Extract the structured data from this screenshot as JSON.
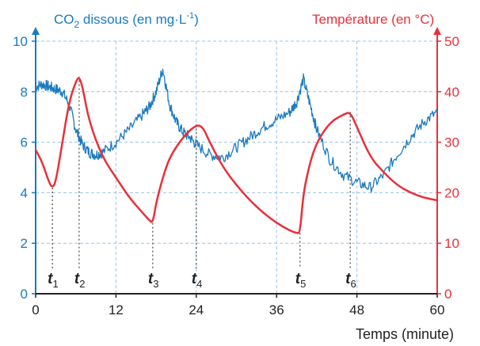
{
  "chart_data": {
    "type": "line",
    "x_label": "Temps (minute)",
    "x_range": [
      0,
      60
    ],
    "x_ticks": [
      0,
      12,
      24,
      36,
      48,
      60
    ],
    "y_left": {
      "label_main": "CO",
      "label_sub": "2",
      "label_rest": " dissous (en mg·L",
      "label_sup": "-1",
      "label_end": ")",
      "range": [
        0,
        10
      ],
      "ticks": [
        0,
        2,
        4,
        6,
        8,
        10
      ],
      "color": "#1a7abf"
    },
    "y_right": {
      "label": "Température (en °C)",
      "range": [
        0,
        50
      ],
      "ticks": [
        0,
        10,
        20,
        30,
        40,
        50
      ],
      "color": "#e8303a"
    },
    "grid": true,
    "series": [
      {
        "axis": "left",
        "color": "#1a7abf",
        "x": [
          0,
          1,
          2,
          3,
          4,
          5,
          6,
          7,
          8,
          9,
          10,
          12,
          14,
          16,
          17,
          18,
          19,
          20,
          21,
          22,
          23,
          24,
          26,
          28,
          30,
          32,
          34,
          36,
          38,
          39,
          40,
          41,
          42,
          44,
          46,
          48,
          50,
          52,
          54,
          56,
          58,
          60
        ],
        "y": [
          8.2,
          8.3,
          8.2,
          8.1,
          8.0,
          7.5,
          6.5,
          5.9,
          5.6,
          5.5,
          5.6,
          6.0,
          6.5,
          7.1,
          7.4,
          8.0,
          8.9,
          7.5,
          6.8,
          6.4,
          6.2,
          5.9,
          5.5,
          5.4,
          5.8,
          6.2,
          6.6,
          6.9,
          7.2,
          7.6,
          8.5,
          7.5,
          6.5,
          5.3,
          4.7,
          4.4,
          4.2,
          4.7,
          5.5,
          6.2,
          6.8,
          7.2
        ]
      },
      {
        "axis": "right",
        "color": "#e8303a",
        "x": [
          0,
          1,
          2,
          2.5,
          3,
          4,
          5,
          6,
          6.5,
          7,
          8,
          10,
          12,
          14,
          16,
          17,
          17.5,
          18,
          19,
          20,
          22,
          24,
          25,
          26,
          28,
          30,
          32,
          34,
          36,
          38,
          39,
          39.5,
          40,
          41,
          42,
          44,
          46,
          47,
          48,
          50,
          52,
          54,
          56,
          58,
          60
        ],
        "y": [
          28.5,
          26,
          22,
          21,
          22,
          30,
          38,
          42,
          43,
          41,
          34,
          27,
          23,
          19,
          16,
          14.5,
          14,
          18,
          23,
          27,
          31,
          33.5,
          33,
          30,
          25,
          21.5,
          18.5,
          16,
          14,
          12.5,
          12,
          12,
          20,
          26,
          30,
          34,
          35.5,
          36,
          33,
          27,
          24,
          21.5,
          20,
          19,
          18.5
        ]
      }
    ],
    "markers": [
      {
        "name": "t",
        "sub": "1",
        "x": 2.5
      },
      {
        "name": "t",
        "sub": "2",
        "x": 6.5
      },
      {
        "name": "t",
        "sub": "3",
        "x": 17.5
      },
      {
        "name": "t",
        "sub": "4",
        "x": 24
      },
      {
        "name": "t",
        "sub": "5",
        "x": 39.5
      },
      {
        "name": "t",
        "sub": "6",
        "x": 47
      }
    ]
  }
}
